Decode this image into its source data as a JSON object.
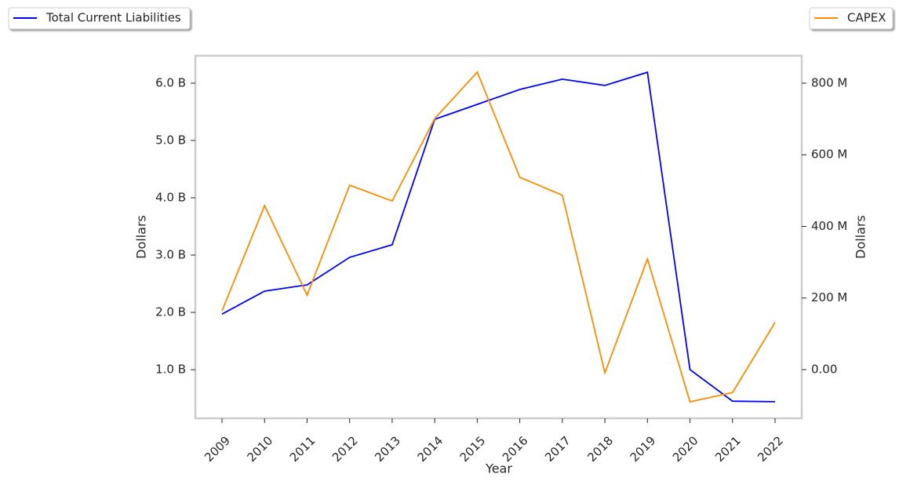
{
  "chart_data": {
    "type": "line",
    "categories": [
      "2009",
      "2010",
      "2011",
      "2012",
      "2013",
      "2014",
      "2015",
      "2016",
      "2017",
      "2018",
      "2019",
      "2020",
      "2021",
      "2022"
    ],
    "x_label": "Year",
    "y_label": "Dollars",
    "y2_label": "Dollars",
    "series": [
      {
        "name": "Total Current Liabilities",
        "color": "#0000ff",
        "axis": "y",
        "values": [
          1970000000,
          2370000000,
          2480000000,
          2960000000,
          3180000000,
          5370000000,
          5630000000,
          5890000000,
          6070000000,
          5960000000,
          6190000000,
          1000000000,
          450000000,
          440000000
        ]
      },
      {
        "name": "CAPEX",
        "color": "#ff8c00",
        "axis": "y2",
        "values": [
          164000000,
          458000000,
          208000000,
          515000000,
          471000000,
          701000000,
          831000000,
          537000000,
          487000000,
          -9000000,
          309000000,
          -90000000,
          -64000000,
          132000000
        ]
      }
    ],
    "ylim": [
      151000000,
      6479000000
    ],
    "yticks": [
      {
        "value": 1000000000,
        "label": "1.0 B"
      },
      {
        "value": 2000000000,
        "label": "2.0 B"
      },
      {
        "value": 3000000000,
        "label": "3.0 B"
      },
      {
        "value": 4000000000,
        "label": "4.0 B"
      },
      {
        "value": 5000000000,
        "label": "5.0 B"
      },
      {
        "value": 6000000000,
        "label": "6.0 B"
      }
    ],
    "y2lim": [
      -135900000,
      876700000
    ],
    "y2ticks": [
      {
        "value": 0,
        "label": "0.00"
      },
      {
        "value": 200000000,
        "label": "200 M"
      },
      {
        "value": 400000000,
        "label": "400 M"
      },
      {
        "value": 600000000,
        "label": "600 M"
      },
      {
        "value": 800000000,
        "label": "800 M"
      }
    ]
  }
}
